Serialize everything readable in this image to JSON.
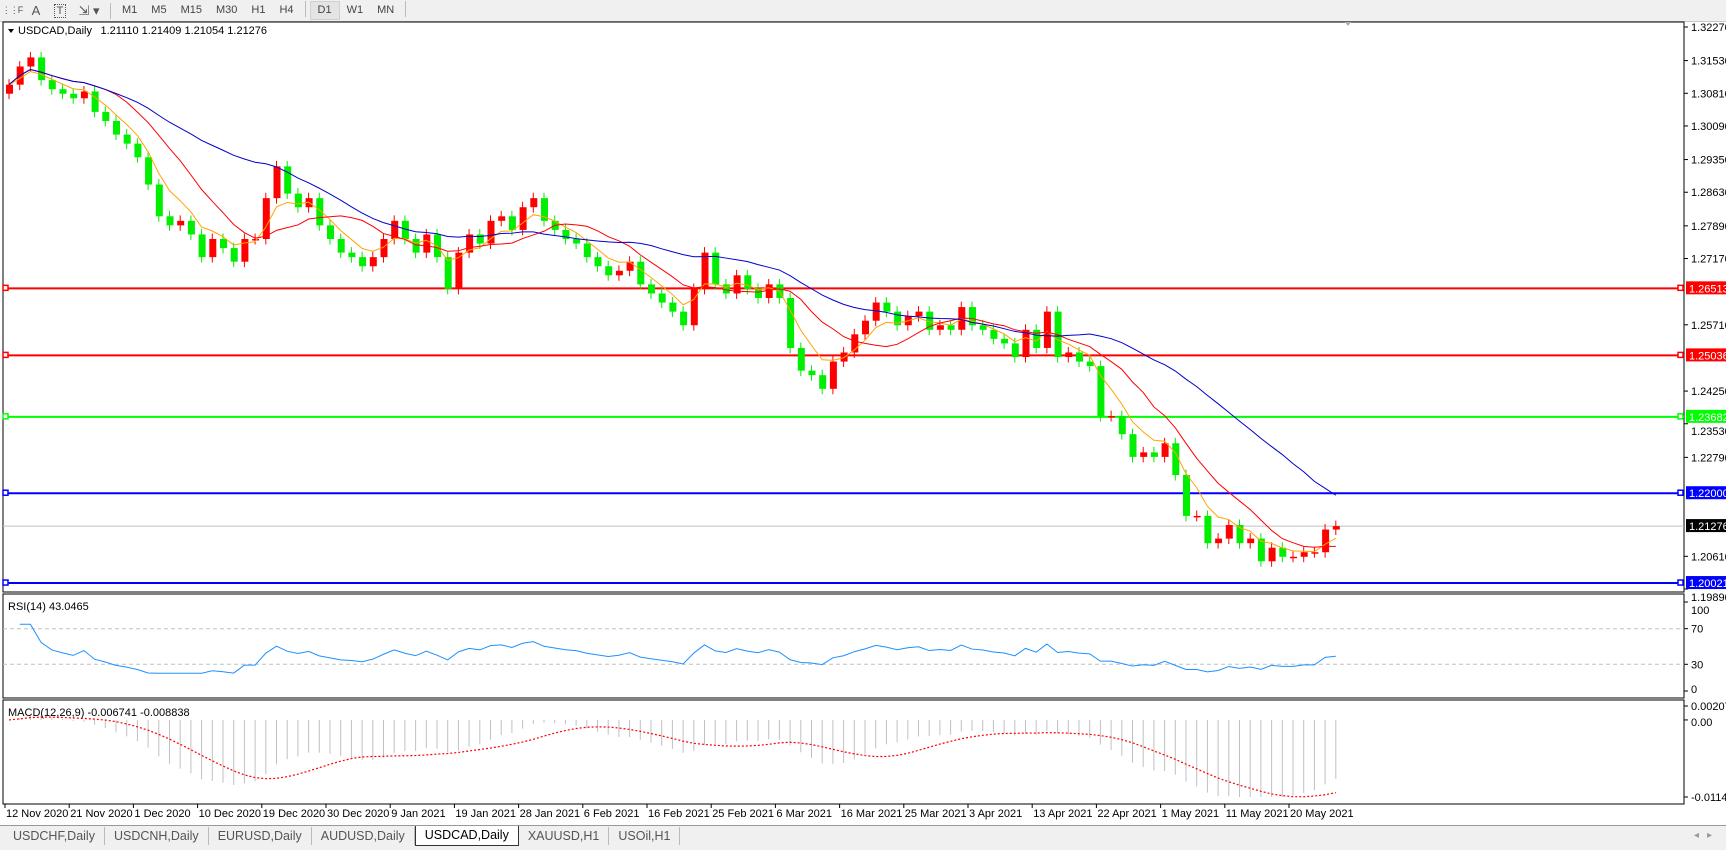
{
  "toolbar": {
    "tools": [
      {
        "icon": "period-separator-icon"
      },
      {
        "icon": "text-icon",
        "label": "A"
      },
      {
        "icon": "text-label-icon",
        "label": "T"
      },
      {
        "icon": "arrows-tool-icon"
      }
    ],
    "timeframes": [
      "M1",
      "M5",
      "M15",
      "M30",
      "H1",
      "H4",
      "D1",
      "W1",
      "MN"
    ],
    "active_timeframe": "D1"
  },
  "chart": {
    "symbol_label": "USDCAD,Daily",
    "ohlc_label": "1.21110 1.21409 1.21054 1.21276",
    "price_ticks": [
      "1.32270",
      "1.31530",
      "1.30810",
      "1.30090",
      "1.29350",
      "1.28630",
      "1.27890",
      "1.27170",
      "1.25710",
      "1.24250",
      "1.23530",
      "1.22790",
      "1.20610",
      "1.19890"
    ],
    "current_price": "1.21276",
    "horizontal_lines": [
      {
        "price": "1.26513",
        "color": "#ff0000"
      },
      {
        "price": "1.25036",
        "color": "#ff0000"
      },
      {
        "price": "1.23682",
        "color": "#00ff00"
      },
      {
        "price": "1.22000",
        "color": "#0000ff"
      },
      {
        "price": "1.20021",
        "color": "#0000ff"
      }
    ],
    "colors": {
      "bull": "#ff0000",
      "bear": "#00ee00",
      "ma_fast": "#ffa500",
      "ma_mid": "#ff0000",
      "ma_slow": "#0000cc",
      "rsi": "#1e90ff",
      "macd_hist": "#c0c0c0",
      "macd_signal": "#ff0000"
    },
    "date_labels": [
      "12 Nov 2020",
      "21 Nov 2020",
      "1 Dec 2020",
      "10 Dec 2020",
      "19 Dec 2020",
      "30 Dec 2020",
      "9 Jan 2021",
      "19 Jan 2021",
      "28 Jan 2021",
      "6 Feb 2021",
      "16 Feb 2021",
      "25 Feb 2021",
      "6 Mar 2021",
      "16 Mar 2021",
      "25 Mar 2021",
      "3 Apr 2021",
      "13 Apr 2021",
      "22 Apr 2021",
      "1 May 2021",
      "11 May 2021",
      "20 May 2021"
    ]
  },
  "rsi": {
    "label": "RSI(14) 43.0465",
    "ticks": [
      "100",
      "70",
      "30",
      "0"
    ]
  },
  "macd": {
    "label": "MACD(12,26,9) -0.006741 -0.008838",
    "ticks": [
      "0.002074",
      "0.00",
      "-0.011462"
    ]
  },
  "chart_data": {
    "type": "candlestick",
    "symbol": "USDCAD",
    "timeframe": "Daily",
    "closes": [
      1.31,
      1.314,
      1.316,
      1.311,
      1.309,
      1.308,
      1.307,
      1.3085,
      1.304,
      1.302,
      1.299,
      1.297,
      1.294,
      1.288,
      1.281,
      1.279,
      1.28,
      1.277,
      1.272,
      1.276,
      1.274,
      1.271,
      1.276,
      1.276,
      1.285,
      1.292,
      1.286,
      1.283,
      1.285,
      1.279,
      1.276,
      1.273,
      1.272,
      1.27,
      1.272,
      1.276,
      1.28,
      1.276,
      1.273,
      1.277,
      1.272,
      1.265,
      1.273,
      1.277,
      1.275,
      1.28,
      1.281,
      1.278,
      1.283,
      1.285,
      1.28,
      1.278,
      1.276,
      1.275,
      1.272,
      1.27,
      1.268,
      1.269,
      1.271,
      1.266,
      1.264,
      1.262,
      1.26,
      1.257,
      1.265,
      1.273,
      1.266,
      1.264,
      1.268,
      1.265,
      1.263,
      1.266,
      1.263,
      1.252,
      1.247,
      1.246,
      1.243,
      1.249,
      1.251,
      1.255,
      1.258,
      1.262,
      1.26,
      1.257,
      1.259,
      1.26,
      1.256,
      1.257,
      1.256,
      1.261,
      1.257,
      1.256,
      1.254,
      1.253,
      1.25,
      1.256,
      1.252,
      1.26,
      1.25,
      1.251,
      1.249,
      1.248,
      1.237,
      1.237,
      1.233,
      1.228,
      1.229,
      1.228,
      1.231,
      1.224,
      1.215,
      1.215,
      1.209,
      1.21,
      1.213,
      1.209,
      1.21,
      1.205,
      1.208,
      1.206,
      1.206,
      1.207,
      1.207,
      1.212,
      1.21276
    ],
    "price_range": [
      1.1989,
      1.3227
    ],
    "rsi_range": [
      0,
      100
    ],
    "macd_range": [
      -0.011462,
      0.002074
    ]
  },
  "tabs": [
    {
      "label": "USDCHF,Daily"
    },
    {
      "label": "USDCNH,Daily"
    },
    {
      "label": "EURUSD,Daily"
    },
    {
      "label": "AUDUSD,Daily"
    },
    {
      "label": "USDCAD,Daily",
      "active": true
    },
    {
      "label": "XAUUSD,H1"
    },
    {
      "label": "USOil,H1"
    }
  ]
}
